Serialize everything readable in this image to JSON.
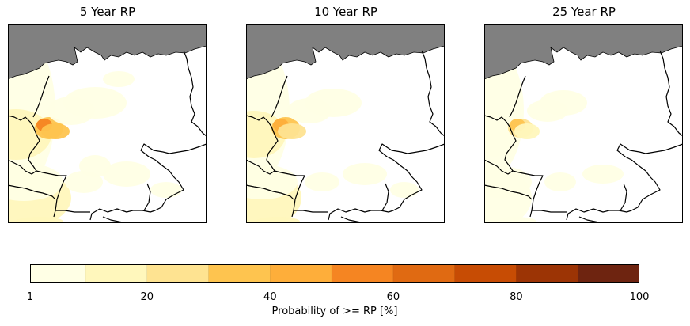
{
  "chart_data": [
    {
      "type": "heatmap",
      "title": "5 Year RP",
      "region": "Germany",
      "hotspot": {
        "lon": 6.6,
        "lat": 51.0,
        "max_probability_pct": 55
      },
      "xlabel": "",
      "ylabel": ""
    },
    {
      "type": "heatmap",
      "title": "10 Year RP",
      "region": "Germany",
      "hotspot": {
        "lon": 6.8,
        "lat": 51.0,
        "max_probability_pct": 45
      },
      "xlabel": "",
      "ylabel": ""
    },
    {
      "type": "heatmap",
      "title": "25 Year RP",
      "region": "Germany",
      "hotspot": {
        "lon": 6.9,
        "lat": 50.9,
        "max_probability_pct": 45
      },
      "xlabel": "",
      "ylabel": ""
    }
  ],
  "colorbar": {
    "label": "Probability of >= RP [%]",
    "levels": [
      1,
      10,
      20,
      30,
      40,
      50,
      60,
      70,
      80,
      90,
      100
    ],
    "colors": [
      "#ffffe5",
      "#fff7bc",
      "#fee391",
      "#fec44f",
      "#feae3a",
      "#f58522",
      "#e06a12",
      "#c74c04",
      "#9c3405",
      "#6e2410"
    ],
    "tick_labels": [
      "1",
      "20",
      "40",
      "60",
      "80",
      "100"
    ],
    "tick_values": [
      1,
      20,
      40,
      60,
      80,
      100
    ],
    "range": [
      1,
      100
    ]
  },
  "colors": {
    "sea": "#808080",
    "border": "#000000",
    "land": "#ffffff"
  }
}
